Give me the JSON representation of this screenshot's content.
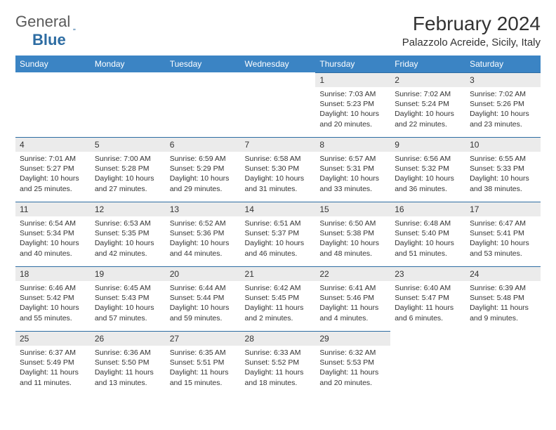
{
  "brand": {
    "general": "General",
    "blue": "Blue"
  },
  "title": "February 2024",
  "location": "Palazzolo Acreide, Sicily, Italy",
  "colors": {
    "header_bg": "#3b84c4",
    "daynum_bg": "#ebebeb",
    "day_border": "#2d6ca2",
    "text": "#333333"
  },
  "weekdays": [
    "Sunday",
    "Monday",
    "Tuesday",
    "Wednesday",
    "Thursday",
    "Friday",
    "Saturday"
  ],
  "weeks": [
    [
      {
        "empty": true
      },
      {
        "empty": true
      },
      {
        "empty": true
      },
      {
        "empty": true
      },
      {
        "num": "1",
        "sunrise": "Sunrise: 7:03 AM",
        "sunset": "Sunset: 5:23 PM",
        "daylight": "Daylight: 10 hours and 20 minutes."
      },
      {
        "num": "2",
        "sunrise": "Sunrise: 7:02 AM",
        "sunset": "Sunset: 5:24 PM",
        "daylight": "Daylight: 10 hours and 22 minutes."
      },
      {
        "num": "3",
        "sunrise": "Sunrise: 7:02 AM",
        "sunset": "Sunset: 5:26 PM",
        "daylight": "Daylight: 10 hours and 23 minutes."
      }
    ],
    [
      {
        "num": "4",
        "sunrise": "Sunrise: 7:01 AM",
        "sunset": "Sunset: 5:27 PM",
        "daylight": "Daylight: 10 hours and 25 minutes."
      },
      {
        "num": "5",
        "sunrise": "Sunrise: 7:00 AM",
        "sunset": "Sunset: 5:28 PM",
        "daylight": "Daylight: 10 hours and 27 minutes."
      },
      {
        "num": "6",
        "sunrise": "Sunrise: 6:59 AM",
        "sunset": "Sunset: 5:29 PM",
        "daylight": "Daylight: 10 hours and 29 minutes."
      },
      {
        "num": "7",
        "sunrise": "Sunrise: 6:58 AM",
        "sunset": "Sunset: 5:30 PM",
        "daylight": "Daylight: 10 hours and 31 minutes."
      },
      {
        "num": "8",
        "sunrise": "Sunrise: 6:57 AM",
        "sunset": "Sunset: 5:31 PM",
        "daylight": "Daylight: 10 hours and 33 minutes."
      },
      {
        "num": "9",
        "sunrise": "Sunrise: 6:56 AM",
        "sunset": "Sunset: 5:32 PM",
        "daylight": "Daylight: 10 hours and 36 minutes."
      },
      {
        "num": "10",
        "sunrise": "Sunrise: 6:55 AM",
        "sunset": "Sunset: 5:33 PM",
        "daylight": "Daylight: 10 hours and 38 minutes."
      }
    ],
    [
      {
        "num": "11",
        "sunrise": "Sunrise: 6:54 AM",
        "sunset": "Sunset: 5:34 PM",
        "daylight": "Daylight: 10 hours and 40 minutes."
      },
      {
        "num": "12",
        "sunrise": "Sunrise: 6:53 AM",
        "sunset": "Sunset: 5:35 PM",
        "daylight": "Daylight: 10 hours and 42 minutes."
      },
      {
        "num": "13",
        "sunrise": "Sunrise: 6:52 AM",
        "sunset": "Sunset: 5:36 PM",
        "daylight": "Daylight: 10 hours and 44 minutes."
      },
      {
        "num": "14",
        "sunrise": "Sunrise: 6:51 AM",
        "sunset": "Sunset: 5:37 PM",
        "daylight": "Daylight: 10 hours and 46 minutes."
      },
      {
        "num": "15",
        "sunrise": "Sunrise: 6:50 AM",
        "sunset": "Sunset: 5:38 PM",
        "daylight": "Daylight: 10 hours and 48 minutes."
      },
      {
        "num": "16",
        "sunrise": "Sunrise: 6:48 AM",
        "sunset": "Sunset: 5:40 PM",
        "daylight": "Daylight: 10 hours and 51 minutes."
      },
      {
        "num": "17",
        "sunrise": "Sunrise: 6:47 AM",
        "sunset": "Sunset: 5:41 PM",
        "daylight": "Daylight: 10 hours and 53 minutes."
      }
    ],
    [
      {
        "num": "18",
        "sunrise": "Sunrise: 6:46 AM",
        "sunset": "Sunset: 5:42 PM",
        "daylight": "Daylight: 10 hours and 55 minutes."
      },
      {
        "num": "19",
        "sunrise": "Sunrise: 6:45 AM",
        "sunset": "Sunset: 5:43 PM",
        "daylight": "Daylight: 10 hours and 57 minutes."
      },
      {
        "num": "20",
        "sunrise": "Sunrise: 6:44 AM",
        "sunset": "Sunset: 5:44 PM",
        "daylight": "Daylight: 10 hours and 59 minutes."
      },
      {
        "num": "21",
        "sunrise": "Sunrise: 6:42 AM",
        "sunset": "Sunset: 5:45 PM",
        "daylight": "Daylight: 11 hours and 2 minutes."
      },
      {
        "num": "22",
        "sunrise": "Sunrise: 6:41 AM",
        "sunset": "Sunset: 5:46 PM",
        "daylight": "Daylight: 11 hours and 4 minutes."
      },
      {
        "num": "23",
        "sunrise": "Sunrise: 6:40 AM",
        "sunset": "Sunset: 5:47 PM",
        "daylight": "Daylight: 11 hours and 6 minutes."
      },
      {
        "num": "24",
        "sunrise": "Sunrise: 6:39 AM",
        "sunset": "Sunset: 5:48 PM",
        "daylight": "Daylight: 11 hours and 9 minutes."
      }
    ],
    [
      {
        "num": "25",
        "sunrise": "Sunrise: 6:37 AM",
        "sunset": "Sunset: 5:49 PM",
        "daylight": "Daylight: 11 hours and 11 minutes."
      },
      {
        "num": "26",
        "sunrise": "Sunrise: 6:36 AM",
        "sunset": "Sunset: 5:50 PM",
        "daylight": "Daylight: 11 hours and 13 minutes."
      },
      {
        "num": "27",
        "sunrise": "Sunrise: 6:35 AM",
        "sunset": "Sunset: 5:51 PM",
        "daylight": "Daylight: 11 hours and 15 minutes."
      },
      {
        "num": "28",
        "sunrise": "Sunrise: 6:33 AM",
        "sunset": "Sunset: 5:52 PM",
        "daylight": "Daylight: 11 hours and 18 minutes."
      },
      {
        "num": "29",
        "sunrise": "Sunrise: 6:32 AM",
        "sunset": "Sunset: 5:53 PM",
        "daylight": "Daylight: 11 hours and 20 minutes."
      },
      {
        "empty": true
      },
      {
        "empty": true
      }
    ]
  ]
}
